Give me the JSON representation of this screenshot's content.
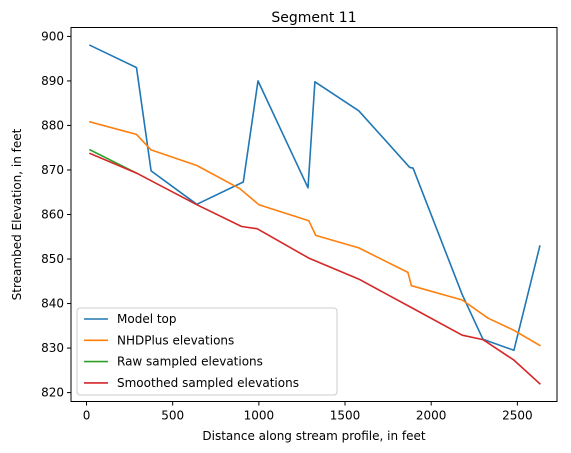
{
  "chart_data": {
    "type": "line",
    "title": "Segment 11",
    "xlabel": "Distance along stream profile, in feet",
    "ylabel": "Streambed Elevation, in feet",
    "xlim": [
      -90,
      2730
    ],
    "ylim": [
      818,
      902
    ],
    "xticks": [
      0,
      500,
      1000,
      1500,
      2000,
      2500
    ],
    "yticks": [
      820,
      830,
      840,
      850,
      860,
      870,
      880,
      890,
      900
    ],
    "grid": false,
    "legend_position": "lower-left",
    "series": [
      {
        "name": "Model top",
        "color": "#1f77b4",
        "x": [
          20,
          290,
          375,
          640,
          910,
          995,
          1285,
          1325,
          1580,
          1875,
          1895,
          2180,
          2300,
          2480,
          2630
        ],
        "y": [
          898.0,
          893.0,
          869.8,
          862.3,
          867.3,
          890.0,
          866.0,
          889.8,
          883.3,
          870.6,
          870.4,
          842.0,
          832.0,
          829.5,
          852.9
        ]
      },
      {
        "name": "NHDPlus elevations",
        "color": "#ff7f0e",
        "x": [
          20,
          290,
          375,
          640,
          890,
          1000,
          1290,
          1330,
          1580,
          1865,
          1885,
          2180,
          2330,
          2480,
          2630
        ],
        "y": [
          880.8,
          878.0,
          874.5,
          871.0,
          865.8,
          862.2,
          858.6,
          855.3,
          852.5,
          847.0,
          844.0,
          840.8,
          836.7,
          834.0,
          830.6
        ]
      },
      {
        "name": "Raw sampled elevations",
        "color": "#2ca02c",
        "x": [
          20,
          290
        ],
        "y": [
          874.5,
          869.3
        ]
      },
      {
        "name": "Smoothed sampled elevations",
        "color": "#d62728",
        "x": [
          20,
          290,
          640,
          900,
          990,
          1290,
          1580,
          1890,
          2180,
          2300,
          2480,
          2630
        ],
        "y": [
          873.7,
          869.3,
          862.2,
          857.3,
          856.8,
          850.2,
          845.5,
          839.0,
          832.9,
          831.9,
          827.3,
          822.0
        ]
      }
    ]
  }
}
